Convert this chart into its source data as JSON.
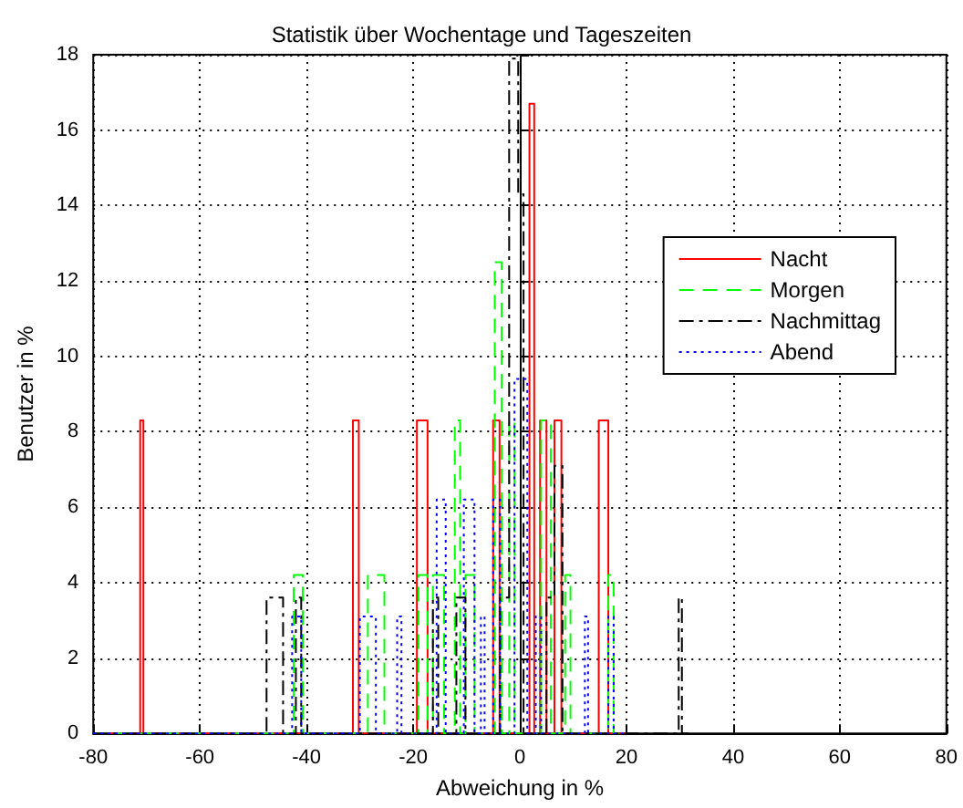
{
  "chart_data": {
    "type": "line",
    "title": "Statistik über Wochentage und Tageszeiten",
    "xlabel": "Abweichung in %",
    "ylabel": "Benutzer in %",
    "xlim": [
      -80,
      80
    ],
    "xticks": [
      -80,
      -60,
      -40,
      -20,
      0,
      20,
      40,
      60,
      80
    ],
    "ylim": [
      0,
      18
    ],
    "yticks": [
      0,
      2,
      4,
      6,
      8,
      10,
      12,
      14,
      16,
      18
    ],
    "grid": true,
    "legend": "right",
    "marker": "none",
    "series": [
      {
        "name": "Nacht",
        "color": "#ff0000",
        "line_style": "solid",
        "x": [
          -80,
          -71.2,
          -71.2,
          -70.6,
          -70.6,
          -31.3,
          -31.3,
          -30.2,
          -30.2,
          -19.3,
          -19.3,
          -17.3,
          -17.3,
          -5,
          -5,
          -3.8,
          -3.8,
          1.8,
          1.8,
          2.7,
          2.7,
          3.8,
          3.8,
          5,
          5,
          6.5,
          6.5,
          7.8,
          7.8,
          14.8,
          14.8,
          16.6,
          16.6,
          20
        ],
        "values": [
          0,
          0,
          8.3,
          8.3,
          0,
          0,
          8.3,
          8.3,
          0,
          0,
          8.3,
          8.3,
          0,
          0,
          8.3,
          8.3,
          0,
          0,
          16.7,
          16.7,
          0,
          0,
          8.3,
          8.3,
          0,
          0,
          8.3,
          8.3,
          0,
          0,
          8.3,
          8.3,
          0,
          0
        ]
      },
      {
        "name": "Morgen",
        "color": "#00ff00",
        "line_style": "dashed",
        "x": [
          -80,
          -42.4,
          -42.4,
          -40.7,
          -40.7,
          -28.5,
          -28.5,
          -25.4,
          -25.4,
          -19,
          -19,
          -17.3,
          -17.3,
          -16.3,
          -16.3,
          -14.2,
          -14.2,
          -12.2,
          -12.2,
          -11.2,
          -11.2,
          -10.2,
          -10.2,
          -8.5,
          -8.5,
          -4.7,
          -4.7,
          -3.4,
          -3.4,
          -2,
          -2,
          -1,
          -1,
          4,
          4,
          5.8,
          5.8,
          8.5,
          8.5,
          9.5,
          9.5,
          16.6,
          16.6,
          17.6,
          17.6,
          20
        ],
        "values": [
          0,
          0,
          4.2,
          4.2,
          0,
          0,
          4.2,
          4.2,
          0,
          0,
          4.2,
          4.2,
          0,
          0,
          4.2,
          4.2,
          0,
          0,
          8.3,
          8.3,
          0,
          0,
          4.2,
          4.2,
          0,
          0,
          12.5,
          12.5,
          0,
          0,
          8.3,
          8.3,
          0,
          0,
          8.3,
          8.3,
          0,
          0,
          4.2,
          4.2,
          0,
          0,
          4.2,
          4.2,
          0,
          0
        ]
      },
      {
        "name": "Nachmittag",
        "color": "#000000",
        "line_style": "dashdot",
        "x": [
          -80,
          -47.5,
          -47.5,
          -44.4,
          -44.4,
          -42,
          -42,
          -41,
          -41,
          -16.3,
          -16.3,
          -15.3,
          -15.3,
          -11.9,
          -11.9,
          -10.2,
          -10.2,
          -3.7,
          -3.7,
          -2,
          -2,
          -0.3,
          -0.3,
          0.7,
          0.7,
          5,
          5,
          6.5,
          6.5,
          8,
          8,
          29.8,
          29.8,
          30.4,
          30.4,
          32
        ],
        "values": [
          0,
          0,
          3.6,
          3.6,
          0,
          0,
          3.6,
          3.6,
          0,
          0,
          3.6,
          3.6,
          0,
          0,
          3.6,
          3.6,
          0,
          0,
          3.6,
          3.6,
          17.9,
          17.9,
          14.3,
          14.3,
          0,
          0,
          3.6,
          3.6,
          7.1,
          7.1,
          0,
          0,
          3.6,
          3.6,
          0,
          0
        ]
      },
      {
        "name": "Abend",
        "color": "#0000ff",
        "line_style": "dotted",
        "x": [
          -80,
          -42.7,
          -42.7,
          -41,
          -41,
          -30,
          -30,
          -27,
          -27,
          -23,
          -23,
          -22.2,
          -22.2,
          -15.6,
          -15.6,
          -13.9,
          -13.9,
          -10.5,
          -10.5,
          -8.5,
          -8.5,
          -7.3,
          -7.3,
          -6.6,
          -6.6,
          -5,
          -5,
          -3.7,
          -3.7,
          -1,
          -1,
          1.4,
          1.4,
          3,
          3,
          4,
          4,
          12.2,
          12.2,
          12.8,
          12.8,
          16.6,
          16.6,
          17.6,
          17.6,
          20
        ],
        "values": [
          0,
          0,
          3.1,
          3.1,
          0,
          0,
          3.1,
          3.1,
          0,
          0,
          3.1,
          3.1,
          0,
          0,
          6.2,
          6.2,
          0,
          0,
          6.2,
          6.2,
          0,
          0,
          3.1,
          3.1,
          0,
          0,
          6.2,
          6.2,
          0,
          0,
          9.4,
          9.4,
          0,
          0,
          3.1,
          3.1,
          0,
          0,
          3.1,
          3.1,
          0,
          0,
          3.1,
          3.1,
          0,
          0
        ]
      }
    ]
  }
}
